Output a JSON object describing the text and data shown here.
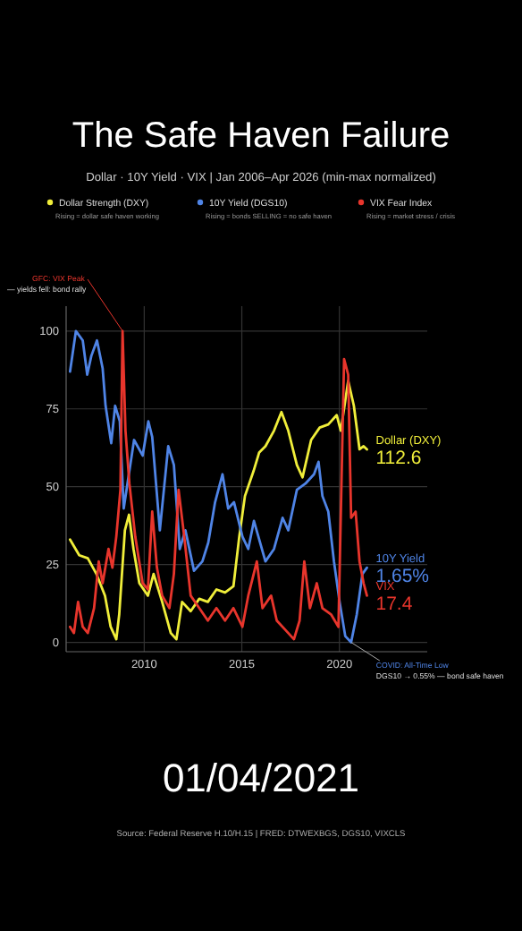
{
  "chart_data": {
    "type": "line",
    "title": "The Safe Haven Failure",
    "subtitle": "Dollar · 10Y Yield · VIX  |  Jan 2006–Apr 2026  (min-max normalized)",
    "legend": "top",
    "grid": true,
    "marker": "none",
    "line_style": "solid",
    "xlim": [
      2006,
      2024.5
    ],
    "xticks": [
      2010,
      2015,
      2020
    ],
    "ylim": [
      -3,
      108
    ],
    "yticks": [
      0,
      25,
      50,
      75,
      100
    ],
    "series": [
      {
        "name": "Dollar Strength (DXY)",
        "color": "#f0ee3a",
        "x": [
          2006.2,
          2006.67,
          2007.11,
          2007.55,
          2007.99,
          2008.28,
          2008.57,
          2008.72,
          2009.01,
          2009.22,
          2009.45,
          2009.75,
          2010.19,
          2010.48,
          2010.92,
          2011.36,
          2011.65,
          2011.94,
          2012.38,
          2012.82,
          2013.26,
          2013.7,
          2014.14,
          2014.57,
          2014.87,
          2015.16,
          2015.6,
          2015.89,
          2016.21,
          2016.65,
          2017.03,
          2017.38,
          2017.82,
          2018.11,
          2018.55,
          2018.99,
          2019.43,
          2019.86,
          2020.07,
          2020.45,
          2020.74,
          2021.03,
          2021.24,
          2021.41
        ],
        "values": [
          33,
          28,
          27,
          22,
          15,
          5,
          1,
          9,
          36,
          41,
          30,
          19,
          15,
          22,
          13,
          3,
          1,
          13,
          10,
          14,
          13,
          17,
          16,
          18,
          34,
          47,
          55,
          61,
          63,
          68,
          74,
          68,
          57,
          53,
          65,
          69,
          70,
          73,
          68,
          84,
          76,
          62,
          63,
          62
        ]
      },
      {
        "name": "10Y Yield (DGS10)",
        "color": "#4f84e6",
        "x": [
          2006.2,
          2006.5,
          2006.85,
          2007.08,
          2007.29,
          2007.58,
          2007.87,
          2008.02,
          2008.31,
          2008.51,
          2008.75,
          2008.95,
          2009.19,
          2009.48,
          2009.92,
          2010.21,
          2010.41,
          2010.8,
          2011.23,
          2011.52,
          2011.82,
          2012.11,
          2012.55,
          2012.98,
          2013.28,
          2013.63,
          2014.01,
          2014.3,
          2014.6,
          2015.03,
          2015.33,
          2015.62,
          2016.21,
          2016.65,
          2017.09,
          2017.38,
          2017.82,
          2018.26,
          2018.7,
          2018.93,
          2019.13,
          2019.43,
          2019.72,
          2020.01,
          2020.3,
          2020.6,
          2020.89,
          2021.18,
          2021.41
        ],
        "values": [
          87,
          100,
          97,
          86,
          92,
          97,
          88,
          76,
          64,
          76,
          71,
          43,
          53,
          65,
          60,
          71,
          66,
          36,
          63,
          57,
          30,
          36,
          23,
          26,
          32,
          45,
          54,
          43,
          45,
          34,
          30,
          39,
          26,
          30,
          40,
          36,
          49,
          51,
          54,
          58,
          47,
          42,
          26,
          13,
          2,
          0,
          9,
          22,
          24
        ]
      },
      {
        "name": "VIX Fear Index",
        "color": "#e8352c",
        "x": [
          2006.2,
          2006.4,
          2006.61,
          2006.85,
          2007.11,
          2007.43,
          2007.67,
          2007.87,
          2008.17,
          2008.37,
          2008.57,
          2008.78,
          2008.89,
          2009.04,
          2009.24,
          2009.54,
          2009.92,
          2010.19,
          2010.41,
          2010.65,
          2010.92,
          2011.29,
          2011.52,
          2011.76,
          2012.05,
          2012.38,
          2012.82,
          2013.26,
          2013.7,
          2014.14,
          2014.57,
          2015.03,
          2015.33,
          2015.77,
          2016.06,
          2016.5,
          2016.79,
          2017.23,
          2017.67,
          2017.96,
          2018.2,
          2018.49,
          2018.84,
          2019.13,
          2019.57,
          2019.95,
          2020.24,
          2020.45,
          2020.6,
          2020.83,
          2021.03,
          2021.24,
          2021.41
        ],
        "values": [
          5,
          3,
          13,
          5,
          3,
          11,
          26,
          19,
          30,
          24,
          34,
          49,
          100,
          68,
          51,
          34,
          19,
          17,
          42,
          24,
          15,
          11,
          22,
          49,
          34,
          15,
          11,
          7,
          11,
          7,
          11,
          5,
          15,
          26,
          11,
          15,
          7,
          4,
          1,
          7,
          26,
          11,
          19,
          11,
          9,
          5,
          91,
          86,
          40,
          42,
          26,
          19,
          15
        ]
      }
    ],
    "annotations": [
      {
        "text": "GFC: VIX Peak",
        "x": 2008.89,
        "y": 100
      },
      {
        "text": "COVID: All-Time Low",
        "x": 2020.6,
        "y": 0
      },
      {
        "text": "Dollar (DXY)",
        "x": 2021.41,
        "y": 62
      },
      {
        "text": "112.6",
        "x": 2021.41,
        "y": 62
      },
      {
        "text": "10Y Yield",
        "x": 2021.41,
        "y": 24
      },
      {
        "text": "1.65%",
        "x": 2021.41,
        "y": 24
      },
      {
        "text": "VIX",
        "x": 2021.41,
        "y": 15
      },
      {
        "text": "17.4",
        "x": 2021.41,
        "y": 15
      },
      "Rising = dollar safe haven working",
      "Rising = bonds SELLING = no safe haven",
      "Rising = market stress / crisis",
      "— yields fell: bond rally",
      "DGS10 → 0.55% — bond safe haven",
      "01/04/2021",
      "Source: Federal Reserve H.10/H.15  |  FRED: DTWEXBGS, DGS10, VIXCLS"
    ]
  }
}
